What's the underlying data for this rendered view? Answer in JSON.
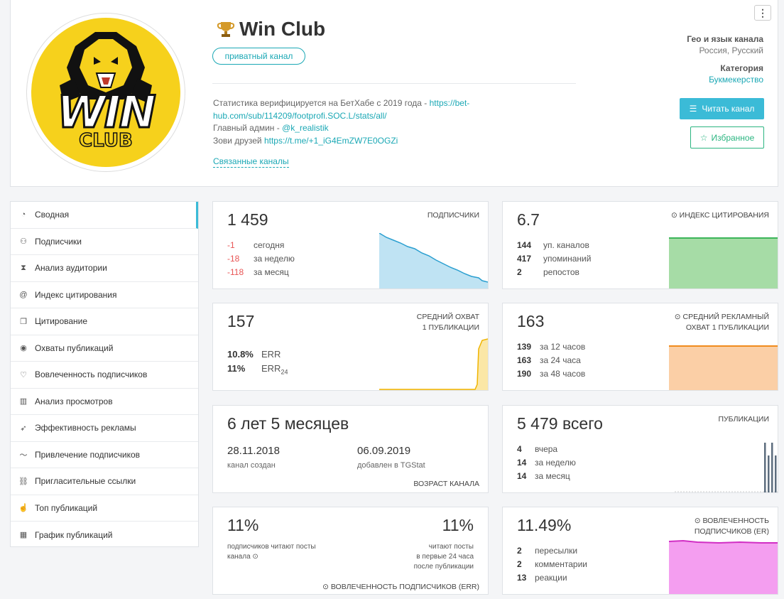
{
  "channel": {
    "title": "Win Club",
    "badge": "приватный канал",
    "logo_text_top": "WIN",
    "logo_text_bottom": "CLUB",
    "desc_line1_prefix": "Статистика верифицируется на БетХабе с 2019 года - ",
    "desc_link1": "https://bet-hub.com/sub/114209/footprofi.SOC.L/stats/all/",
    "desc_line2_prefix": "Главный админ - ",
    "desc_link2": "@k_realistik",
    "desc_line3_prefix": "Зови друзей ",
    "desc_link3": "https://t.me/+1_iG4EmZW7E0OGZi",
    "related": "Связанные каналы",
    "geo_label": "Гео и язык канала",
    "geo_value": "Россия, Русский",
    "category_label": "Категория",
    "category_value": "Букмекерство",
    "read_button": "Читать канал",
    "fav_button": "Избранное"
  },
  "sidebar": {
    "items": [
      {
        "label": "Сводная",
        "icon": "gauge-icon"
      },
      {
        "label": "Подписчики",
        "icon": "users-icon"
      },
      {
        "label": "Анализ аудитории",
        "icon": "hourglass-icon"
      },
      {
        "label": "Индекс цитирования",
        "icon": "at-icon"
      },
      {
        "label": "Цитирование",
        "icon": "quote-icon"
      },
      {
        "label": "Охваты публикаций",
        "icon": "eye-icon"
      },
      {
        "label": "Вовлеченность подписчиков",
        "icon": "heart-icon"
      },
      {
        "label": "Анализ просмотров",
        "icon": "bar-chart-icon"
      },
      {
        "label": "Эффективность рекламы",
        "icon": "rocket-icon"
      },
      {
        "label": "Привлечение подписчиков",
        "icon": "trend-icon"
      },
      {
        "label": "Пригласительные ссылки",
        "icon": "link-icon"
      },
      {
        "label": "Топ публикаций",
        "icon": "thumbs-up-icon"
      },
      {
        "label": "График публикаций",
        "icon": "calendar-icon"
      }
    ]
  },
  "cards": {
    "subscribers": {
      "value": "1 459",
      "title": "ПОДПИСЧИКИ",
      "rows": [
        {
          "n": "-1",
          "t": "сегодня"
        },
        {
          "n": "-18",
          "t": "за неделю"
        },
        {
          "n": "-118",
          "t": "за месяц"
        }
      ]
    },
    "citation": {
      "value": "6.7",
      "title": "ИНДЕКС ЦИТИРОВАНИЯ",
      "rows": [
        {
          "n": "144",
          "t": "уп. каналов"
        },
        {
          "n": "417",
          "t": "упоминаний"
        },
        {
          "n": "2",
          "t": "репостов"
        }
      ]
    },
    "reach": {
      "value": "157",
      "title_line1": "СРЕДНИЙ ОХВАТ",
      "title_line2": "1 ПУБЛИКАЦИИ",
      "err": "10.8%",
      "err_label": "ERR",
      "err24": "11%",
      "err24_label": "ERR",
      "err24_sub": "24"
    },
    "ad_reach": {
      "value": "163",
      "title_line1": "СРЕДНИЙ РЕКЛАМНЫЙ",
      "title_line2": "ОХВАТ 1 ПУБЛИКАЦИИ",
      "rows": [
        {
          "n": "139",
          "t": "за 12 часов"
        },
        {
          "n": "163",
          "t": "за 24 часа"
        },
        {
          "n": "190",
          "t": "за 48 часов"
        }
      ]
    },
    "age": {
      "value": "6 лет 5 месяцев",
      "created_date": "28.11.2018",
      "created_label": "канал создан",
      "added_date": "06.09.2019",
      "added_label": "добавлен в TGStat",
      "title": "ВОЗРАСТ КАНАЛА"
    },
    "posts": {
      "value": "5 479",
      "value_suffix": "всего",
      "title": "ПУБЛИКАЦИИ",
      "rows": [
        {
          "n": "4",
          "t": "вчера"
        },
        {
          "n": "14",
          "t": "за неделю"
        },
        {
          "n": "14",
          "t": "за месяц"
        }
      ]
    },
    "err_card": {
      "value_left": "11%",
      "value_right": "11%",
      "label_left_1": "подписчиков читают посты",
      "label_left_2": "канала",
      "label_right_1": "читают посты",
      "label_right_2": "в первые 24 часа",
      "label_right_3": "после публикации",
      "title": "ВОВЛЕЧЕННОСТЬ ПОДПИСЧИКОВ (ERR)"
    },
    "er": {
      "value": "11.49%",
      "title_line1": "ВОВЛЕЧЕННОСТЬ",
      "title_line2": "ПОДПИСЧИКОВ (ER)",
      "rows": [
        {
          "n": "2",
          "t": "пересылки"
        },
        {
          "n": "2",
          "t": "комментарии"
        },
        {
          "n": "13",
          "t": "реакции"
        }
      ]
    }
  },
  "colors": {
    "accent": "#3bbbd7",
    "green": "#2bb581",
    "red": "#e85555",
    "subs_line": "#2b9fd0",
    "citation_line": "#3cb55a",
    "reach_line": "#f0b400",
    "ad_line": "#f08c1e",
    "er_line": "#d12fc4",
    "posts_bar": "#5d6d7e"
  }
}
